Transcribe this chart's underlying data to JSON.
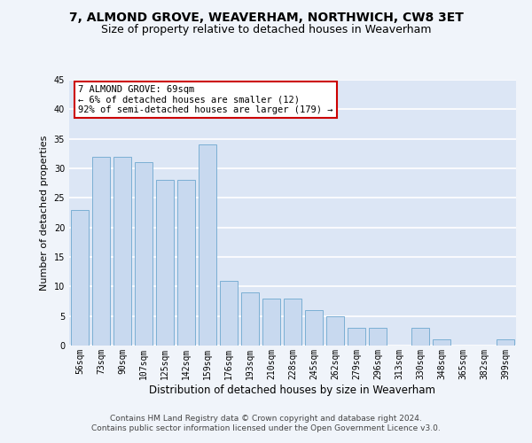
{
  "title": "7, ALMOND GROVE, WEAVERHAM, NORTHWICH, CW8 3ET",
  "subtitle": "Size of property relative to detached houses in Weaverham",
  "xlabel": "Distribution of detached houses by size in Weaverham",
  "ylabel": "Number of detached properties",
  "categories": [
    "56sqm",
    "73sqm",
    "90sqm",
    "107sqm",
    "125sqm",
    "142sqm",
    "159sqm",
    "176sqm",
    "193sqm",
    "210sqm",
    "228sqm",
    "245sqm",
    "262sqm",
    "279sqm",
    "296sqm",
    "313sqm",
    "330sqm",
    "348sqm",
    "365sqm",
    "382sqm",
    "399sqm"
  ],
  "values": [
    23,
    32,
    32,
    31,
    28,
    28,
    34,
    11,
    9,
    8,
    8,
    6,
    5,
    3,
    3,
    0,
    3,
    1,
    0,
    0,
    1
  ],
  "bar_color": "#c8d9ef",
  "bar_edge_color": "#7bafd4",
  "annotation_box_text": "7 ALMOND GROVE: 69sqm\n← 6% of detached houses are smaller (12)\n92% of semi-detached houses are larger (179) →",
  "annotation_box_color": "#ffffff",
  "annotation_box_edge_color": "#cc0000",
  "fig_bg_color": "#f0f4fa",
  "plot_bg_color": "#dce6f5",
  "grid_color": "#ffffff",
  "ylim": [
    0,
    45
  ],
  "yticks": [
    0,
    5,
    10,
    15,
    20,
    25,
    30,
    35,
    40,
    45
  ],
  "footer_line1": "Contains HM Land Registry data © Crown copyright and database right 2024.",
  "footer_line2": "Contains public sector information licensed under the Open Government Licence v3.0.",
  "title_fontsize": 10,
  "subtitle_fontsize": 9,
  "xlabel_fontsize": 8.5,
  "ylabel_fontsize": 8,
  "tick_fontsize": 7,
  "annotation_fontsize": 7.5,
  "footer_fontsize": 6.5
}
